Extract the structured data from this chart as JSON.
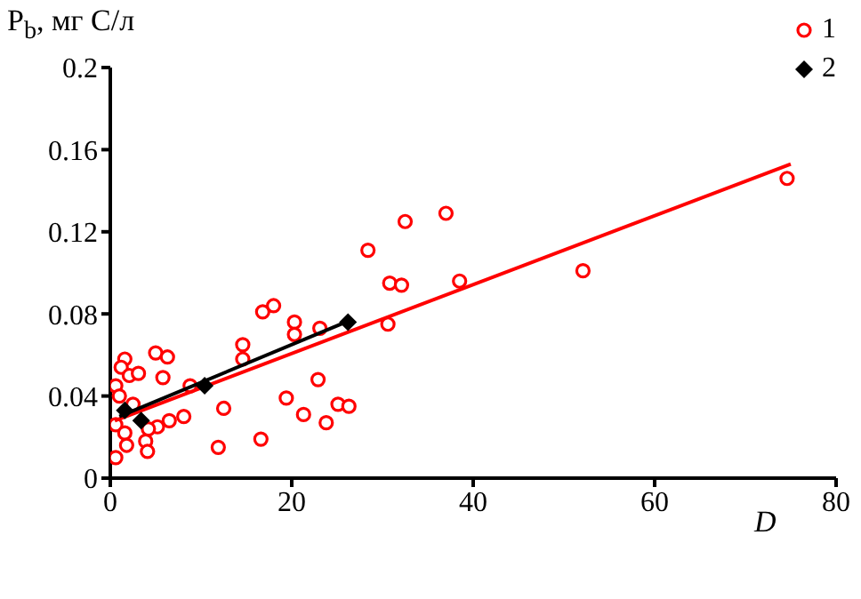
{
  "chart_data": {
    "type": "scatter",
    "ylabel": "P$_{b}$, мг С/л",
    "xlabel": "D",
    "xlim": [
      0,
      80
    ],
    "xticks": [
      0,
      20,
      40,
      60,
      80
    ],
    "ylim": [
      0,
      0.2
    ],
    "yticks": [
      0,
      0.04,
      0.08,
      0.12,
      0.16,
      0.2
    ],
    "grid": false,
    "legend": "top right",
    "series": [
      {
        "name": "1",
        "color": "#ff0000",
        "marker": "circle",
        "x": [
          74.6,
          52.1,
          37,
          32.5,
          28.4,
          30.8,
          32.1,
          38.5,
          16.8,
          18,
          20.3,
          20.3,
          23.1,
          30.6,
          14.6,
          14.6,
          22.9,
          19.4,
          21.3,
          25.1,
          26.3,
          23.8,
          16.6,
          1.6,
          5,
          6.3,
          1.2,
          0.6,
          2.1,
          3.1,
          5.8,
          8.8,
          12.5,
          8.1,
          6.5,
          5.2,
          4.2,
          0.6,
          1.6,
          3.9,
          4.1,
          0.6,
          1.8,
          11.9,
          1,
          2.5
        ],
        "values": [
          0.146,
          0.101,
          0.129,
          0.125,
          0.111,
          0.095,
          0.094,
          0.096,
          0.081,
          0.084,
          0.076,
          0.07,
          0.073,
          0.075,
          0.065,
          0.058,
          0.048,
          0.039,
          0.031,
          0.036,
          0.035,
          0.027,
          0.019,
          0.058,
          0.061,
          0.059,
          0.054,
          0.045,
          0.05,
          0.051,
          0.049,
          0.045,
          0.034,
          0.03,
          0.028,
          0.025,
          0.024,
          0.026,
          0.022,
          0.018,
          0.013,
          0.01,
          0.016,
          0.015,
          0.04,
          0.036
        ]
      },
      {
        "type": "line",
        "color": "#ff0000",
        "marker": "none",
        "x": [
          0.5,
          75
        ],
        "values": [
          0.028,
          0.153
        ]
      },
      {
        "name": "2",
        "color": "#000000",
        "marker": "diamond",
        "x": [
          1.6,
          3.4,
          10.4,
          26.2
        ],
        "values": [
          0.033,
          0.028,
          0.045,
          0.076
        ]
      },
      {
        "type": "line",
        "color": "#000000",
        "marker": "none",
        "x": [
          1,
          26.5
        ],
        "values": [
          0.03,
          0.077
        ]
      }
    ]
  }
}
